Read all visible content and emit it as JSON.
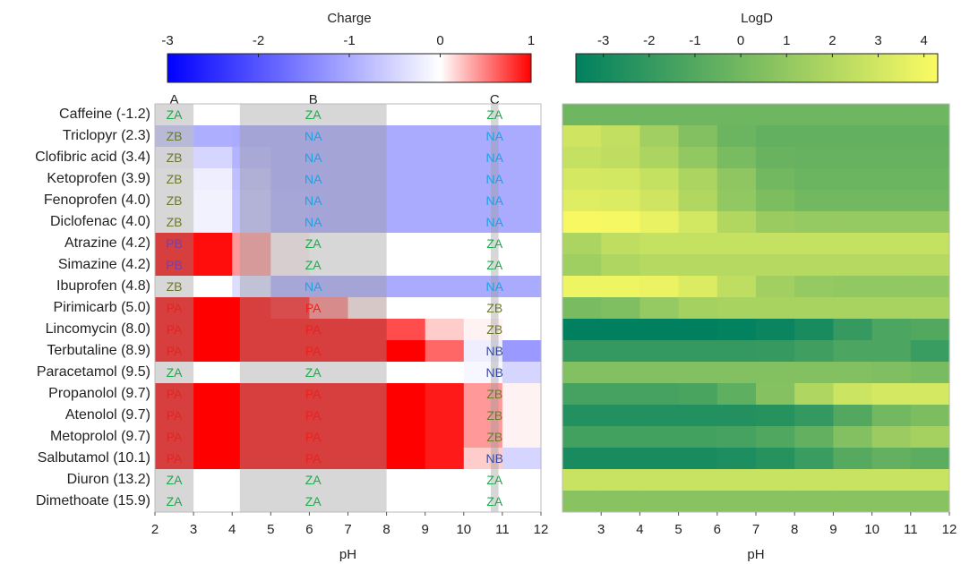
{
  "chart_data": [
    {
      "type": "heatmap",
      "colorbar_label": "Charge",
      "xlabel": "pH",
      "categories": [
        "Caffeine (-1.2)",
        "Triclopyr (2.3)",
        "Clofibric acid (3.4)",
        "Ketoprofen (3.9)",
        "Fenoprofen (4.0)",
        "Diclofenac (4.0)",
        "Atrazine (4.2)",
        "Simazine (4.2)",
        "Ibuprofen (4.8)",
        "Pirimicarb (5.0)",
        "Lincomycin (8.0)",
        "Terbutaline (8.9)",
        "Paracetamol (9.5)",
        "Propanolol (9.7)",
        "Atenolol (9.7)",
        "Metoprolol (9.7)",
        "Salbutamol (10.1)",
        "Diuron (13.2)",
        "Dimethoate (15.9)"
      ],
      "x": [
        2.5,
        3.5,
        4.5,
        5.5,
        6.5,
        7.5,
        8.5,
        9.5,
        10.5,
        11.5
      ],
      "z": [
        [
          0,
          0,
          0,
          0,
          0,
          0,
          0,
          0,
          0,
          0
        ],
        [
          -0.6,
          -0.95,
          -1,
          -1,
          -1,
          -1,
          -1,
          -1,
          -1,
          -1
        ],
        [
          -0.1,
          -0.5,
          -0.9,
          -1,
          -1,
          -1,
          -1,
          -1,
          -1,
          -1
        ],
        [
          0,
          -0.2,
          -0.75,
          -1,
          -1,
          -1,
          -1,
          -1,
          -1,
          -1
        ],
        [
          0,
          -0.15,
          -0.7,
          -0.97,
          -1,
          -1,
          -1,
          -1,
          -1,
          -1
        ],
        [
          0,
          -0.15,
          -0.7,
          -0.97,
          -1,
          -1,
          -1,
          -1,
          -1,
          -1
        ],
        [
          1,
          0.95,
          0.4,
          0.05,
          0,
          0,
          0,
          0,
          0,
          0
        ],
        [
          1,
          0.95,
          0.4,
          0.05,
          0,
          0,
          0,
          0,
          0,
          0
        ],
        [
          0,
          0,
          -0.4,
          -0.95,
          -1,
          -1,
          -1,
          -1,
          -1,
          -1
        ],
        [
          1,
          1,
          1,
          0.9,
          0.5,
          0.1,
          0,
          0,
          0,
          0
        ],
        [
          1,
          1,
          1,
          1,
          1,
          1,
          0.7,
          0.2,
          0.05,
          0
        ],
        [
          1,
          1,
          1,
          1,
          1,
          1,
          1,
          0.6,
          -0.2,
          -1.2
        ],
        [
          0,
          0,
          0,
          0,
          0,
          0,
          0,
          0,
          -0.1,
          -0.5
        ],
        [
          1,
          1,
          1,
          1,
          1,
          1,
          1,
          0.9,
          0.4,
          0.05
        ],
        [
          1,
          1,
          1,
          1,
          1,
          1,
          1,
          0.9,
          0.4,
          0.05
        ],
        [
          1,
          1,
          1,
          1,
          1,
          1,
          1,
          0.9,
          0.4,
          0.05
        ],
        [
          1,
          1,
          1,
          1,
          1,
          1,
          1,
          0.9,
          0.2,
          -0.5
        ],
        [
          0,
          0,
          0,
          0,
          0,
          0,
          0,
          0,
          0,
          0
        ],
        [
          0,
          0,
          0,
          0,
          0,
          0,
          0,
          0,
          0,
          0
        ]
      ],
      "colormap": [
        {
          "value": -3,
          "color": "#0000ff"
        },
        {
          "value": 0,
          "color": "#ffffff"
        },
        {
          "value": 1,
          "color": "#ff0000"
        }
      ],
      "cticks": [
        -3,
        -2,
        -1,
        0,
        1
      ],
      "xlim": [
        2,
        12
      ],
      "xticks": [
        2,
        3,
        4,
        5,
        6,
        7,
        8,
        9,
        10,
        11,
        12
      ],
      "zones": [
        {
          "label": "A",
          "range": [
            2,
            3
          ]
        },
        {
          "label": "B",
          "range": [
            4.2,
            8
          ]
        },
        {
          "label": "C",
          "range": [
            10.7,
            10.9
          ]
        }
      ],
      "zone_labels": [
        [
          "ZA",
          "ZA",
          "ZA"
        ],
        [
          "ZB",
          "NA",
          "NA"
        ],
        [
          "ZB",
          "NA",
          "NA"
        ],
        [
          "ZB",
          "NA",
          "NA"
        ],
        [
          "ZB",
          "NA",
          "NA"
        ],
        [
          "ZB",
          "NA",
          "NA"
        ],
        [
          "PB",
          "ZA",
          "ZA"
        ],
        [
          "PB",
          "ZA",
          "ZA"
        ],
        [
          "ZB",
          "NA",
          "NA"
        ],
        [
          "PA",
          "PA",
          "ZB"
        ],
        [
          "PA",
          "PA",
          "ZB"
        ],
        [
          "PA",
          "PA",
          "NB"
        ],
        [
          "ZA",
          "ZA",
          "NB"
        ],
        [
          "PA",
          "PA",
          "ZB"
        ],
        [
          "PA",
          "PA",
          "ZB"
        ],
        [
          "PA",
          "PA",
          "ZB"
        ],
        [
          "PA",
          "PA",
          "NB"
        ],
        [
          "ZA",
          "ZA",
          "ZA"
        ],
        [
          "ZA",
          "ZA",
          "ZA"
        ]
      ],
      "label_colors": {
        "ZA": "#1fa84a",
        "ZB": "#6b7a2a",
        "NA": "#1ea0e6",
        "NB": "#3a4aa0",
        "PA": "#e8231f",
        "PB": "#7a3fa0"
      },
      "zone_color": "#9a9a9a"
    },
    {
      "type": "heatmap",
      "colorbar_label": "LogD",
      "xlabel": "pH",
      "x": [
        2.5,
        3.5,
        4.5,
        5.5,
        6.5,
        7.5,
        8.5,
        9.5,
        10.5,
        11.5
      ],
      "z": [
        [
          -0.1,
          -0.1,
          -0.1,
          -0.1,
          -0.1,
          -0.1,
          -0.1,
          -0.1,
          -0.1,
          -0.1
        ],
        [
          2.9,
          2.5,
          1.5,
          0.5,
          -0.2,
          -0.5,
          -0.5,
          -0.5,
          -0.5,
          -0.5
        ],
        [
          2.6,
          2.4,
          1.8,
          1,
          0.2,
          -0.3,
          -0.4,
          -0.4,
          -0.4,
          -0.4
        ],
        [
          3.1,
          3,
          2.6,
          1.8,
          0.9,
          0,
          -0.2,
          -0.2,
          -0.2,
          -0.2
        ],
        [
          3.4,
          3.3,
          2.9,
          2,
          1,
          0.3,
          0,
          0,
          0,
          0
        ],
        [
          4.2,
          4.1,
          3.7,
          3,
          2,
          1.2,
          1.1,
          1.1,
          1.1,
          1.1
        ],
        [
          1.8,
          2.4,
          2.6,
          2.6,
          2.6,
          2.6,
          2.6,
          2.6,
          2.6,
          2.6
        ],
        [
          1.4,
          1.9,
          2.1,
          2.1,
          2.1,
          2.1,
          2.1,
          2.1,
          2.1,
          2.1
        ],
        [
          3.9,
          3.9,
          3.8,
          3.3,
          2.4,
          1.5,
          1.1,
          1,
          1,
          1
        ],
        [
          0.2,
          0.4,
          1.1,
          1.6,
          1.7,
          1.7,
          1.7,
          1.7,
          1.7,
          1.7
        ],
        [
          -3.6,
          -3.6,
          -3.6,
          -3.6,
          -3.5,
          -3.3,
          -2.8,
          -1.9,
          -1.2,
          -1
        ],
        [
          -2,
          -2,
          -2,
          -2,
          -2,
          -1.9,
          -1.6,
          -1.2,
          -1.2,
          -1.8
        ],
        [
          0.5,
          0.5,
          0.5,
          0.5,
          0.5,
          0.5,
          0.5,
          0.5,
          0.4,
          0.2
        ],
        [
          -1.4,
          -1.4,
          -1.4,
          -1.3,
          -0.6,
          0.6,
          1.9,
          2.8,
          3.1,
          3.1
        ],
        [
          -2.5,
          -2.5,
          -2.5,
          -2.5,
          -2.5,
          -2.4,
          -2,
          -1,
          0,
          0.3
        ],
        [
          -1.5,
          -1.5,
          -1.5,
          -1.5,
          -1.4,
          -1.1,
          -0.5,
          0.5,
          1.3,
          1.6
        ],
        [
          -2.8,
          -2.8,
          -2.8,
          -2.8,
          -2.7,
          -2.4,
          -1.8,
          -0.9,
          -0.5,
          -0.7
        ],
        [
          2.7,
          2.7,
          2.7,
          2.7,
          2.7,
          2.7,
          2.7,
          2.7,
          2.7,
          2.7
        ],
        [
          0.7,
          0.7,
          0.7,
          0.7,
          0.7,
          0.7,
          0.7,
          0.7,
          0.7,
          0.7
        ]
      ],
      "colormap": [
        {
          "value": -3.6,
          "color": "#00805f"
        },
        {
          "value": 4.3,
          "color": "#fbfb62"
        }
      ],
      "cticks": [
        -3,
        -2,
        -1,
        0,
        1,
        2,
        3,
        4
      ],
      "xlim": [
        2,
        12
      ],
      "xticks": [
        3,
        4,
        5,
        6,
        7,
        8,
        9,
        10,
        11,
        12
      ]
    }
  ]
}
